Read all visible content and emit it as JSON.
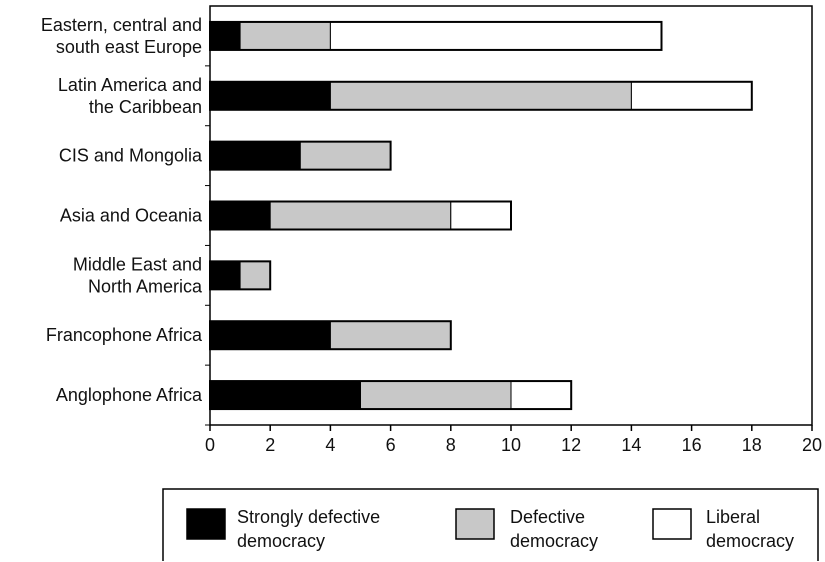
{
  "chart_data": {
    "type": "bar",
    "orientation": "horizontal",
    "stacked": true,
    "categories": [
      [
        "Eastern, central and",
        "south east Europe"
      ],
      [
        "Latin America and",
        "the Caribbean"
      ],
      [
        "CIS and Mongolia"
      ],
      [
        "Asia and Oceania"
      ],
      [
        "Middle East and",
        "North America"
      ],
      [
        "Francophone Africa"
      ],
      [
        "Anglophone Africa"
      ]
    ],
    "series": [
      {
        "name": "Strongly defective democracy",
        "legend_lines": [
          "Strongly defective",
          "democracy"
        ],
        "color": "#000000",
        "values": [
          1,
          4,
          3,
          2,
          1,
          4,
          5
        ]
      },
      {
        "name": "Defective democracy",
        "legend_lines": [
          "Defective",
          "democracy"
        ],
        "color": "#c8c8c8",
        "values": [
          3,
          10,
          3,
          6,
          1,
          4,
          5
        ]
      },
      {
        "name": "Liberal democracy",
        "legend_lines": [
          "Liberal",
          "democracy"
        ],
        "color": "#ffffff",
        "values": [
          11,
          4,
          0,
          2,
          0,
          0,
          2
        ]
      }
    ],
    "xlim": [
      0,
      20
    ],
    "xticks": [
      0,
      2,
      4,
      6,
      8,
      10,
      12,
      14,
      16,
      18,
      20
    ],
    "grid": false,
    "legend_position": "bottom"
  }
}
